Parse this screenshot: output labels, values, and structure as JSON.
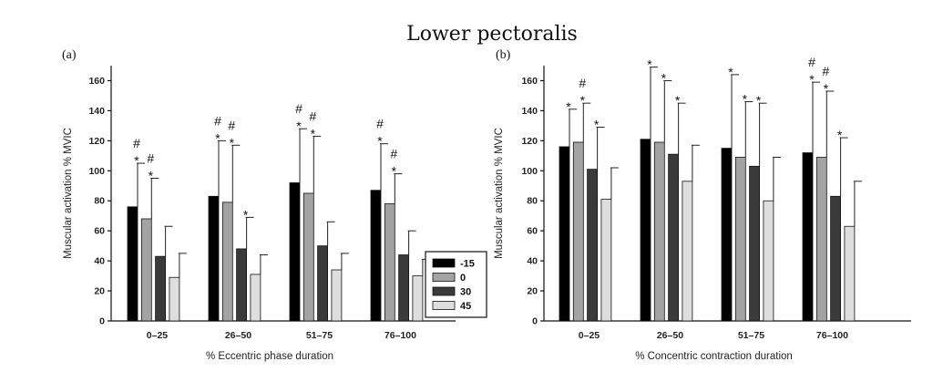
{
  "title": "Lower pectoralis",
  "legend": {
    "entries": [
      {
        "label": "-15",
        "color": "#000000"
      },
      {
        "label": "0",
        "color": "#a3a3a3"
      },
      {
        "label": "30",
        "color": "#3a3a3a"
      },
      {
        "label": "45",
        "color": "#dedede"
      }
    ]
  },
  "chart_data": [
    {
      "type": "bar",
      "panel": "(a)",
      "title": "",
      "xlabel": "% Eccentric phase duration",
      "ylabel": "Muscular activation % MVIC",
      "ylim": [
        0,
        170
      ],
      "yticks": [
        0,
        20,
        40,
        60,
        80,
        100,
        120,
        140,
        160
      ],
      "categories": [
        "0–25",
        "26–50",
        "51–75",
        "76–100"
      ],
      "legend_position": "right",
      "series": [
        {
          "name": "-15",
          "values": [
            76,
            83,
            92,
            87
          ],
          "error_upper": [
            105,
            120,
            128,
            118
          ],
          "markers": [
            "*#",
            "*#",
            "*#",
            "*#"
          ]
        },
        {
          "name": "0",
          "values": [
            68,
            79,
            85,
            78
          ],
          "error_upper": [
            95,
            117,
            123,
            98
          ],
          "markers": [
            "*#",
            "*#",
            "*#",
            "*#"
          ]
        },
        {
          "name": "30",
          "values": [
            43,
            48,
            50,
            44
          ],
          "error_upper": [
            63,
            69,
            66,
            60
          ],
          "markers": [
            "",
            "*",
            "",
            ""
          ]
        },
        {
          "name": "45",
          "values": [
            29,
            31,
            34,
            30
          ],
          "error_upper": [
            45,
            44,
            45,
            41
          ],
          "markers": [
            "",
            "",
            "",
            ""
          ]
        }
      ]
    },
    {
      "type": "bar",
      "panel": "(b)",
      "title": "",
      "xlabel": "% Concentric contraction duration",
      "ylabel": "Muscular activation % MVIC",
      "ylim": [
        0,
        170
      ],
      "yticks": [
        0,
        20,
        40,
        60,
        80,
        100,
        120,
        140,
        160
      ],
      "categories": [
        "0–25",
        "26–50",
        "51–75",
        "76–100"
      ],
      "series": [
        {
          "name": "-15",
          "values": [
            116,
            121,
            115,
            112
          ],
          "error_upper": [
            141,
            169,
            164,
            159
          ],
          "markers": [
            "*",
            "*",
            "*",
            "*#"
          ]
        },
        {
          "name": "0",
          "values": [
            119,
            119,
            109,
            109
          ],
          "error_upper": [
            145,
            160,
            146,
            153
          ],
          "markers": [
            "*#",
            "*",
            "*",
            "*#"
          ]
        },
        {
          "name": "30",
          "values": [
            101,
            111,
            103,
            83
          ],
          "error_upper": [
            129,
            145,
            145,
            122
          ],
          "markers": [
            "*",
            "*",
            "*",
            "*"
          ]
        },
        {
          "name": "45",
          "values": [
            81,
            93,
            80,
            63
          ],
          "error_upper": [
            102,
            117,
            109,
            93
          ],
          "markers": [
            "",
            "",
            "",
            ""
          ]
        }
      ]
    }
  ]
}
